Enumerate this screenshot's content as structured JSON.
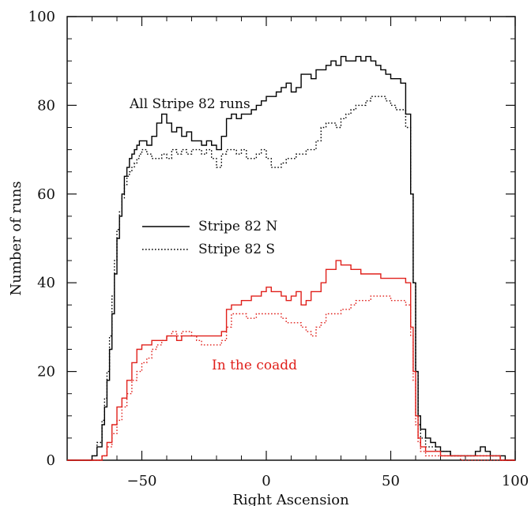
{
  "chart_data": {
    "type": "line",
    "title": "",
    "xlabel": "Right Ascension",
    "ylabel": "Number of runs",
    "xlim": [
      -80,
      100
    ],
    "ylim": [
      0,
      100
    ],
    "xticks": [
      -50,
      0,
      50,
      100
    ],
    "yticks": [
      0,
      20,
      40,
      60,
      80,
      100
    ],
    "xtick_labels": [
      "−50",
      "0",
      "50",
      "100"
    ],
    "ytick_labels": [
      "0",
      "20",
      "40",
      "60",
      "80",
      "100"
    ],
    "grid": false,
    "legend": {
      "placement": "center-left",
      "entries": [
        {
          "label": "Stripe 82 N",
          "style": "solid",
          "color": "#000000"
        },
        {
          "label": "Stripe 82 S",
          "style": "dotted",
          "color": "#000000"
        }
      ]
    },
    "annotations": [
      {
        "text": "All Stripe 82 runs",
        "color": "#000000",
        "x": -44,
        "y": 84
      },
      {
        "text": "In the coadd",
        "color": "#e0201b",
        "x": -25,
        "y": 20.5
      }
    ],
    "series": [
      {
        "group": "All Stripe 82 runs",
        "style": "solid",
        "color": "#000000",
        "x": [
          -80,
          -70,
          -68,
          -66,
          -65,
          -64,
          -63,
          -62,
          -61,
          -60,
          -59,
          -58,
          -57,
          -56,
          -55,
          -54,
          -53,
          -52,
          -51,
          -50,
          -48,
          -46,
          -44,
          -42,
          -40,
          -38,
          -36,
          -34,
          -32,
          -30,
          -28,
          -26,
          -24,
          -22,
          -20,
          -18,
          -16,
          -14,
          -12,
          -10,
          -8,
          -6,
          -4,
          -2,
          0,
          2,
          4,
          6,
          8,
          10,
          12,
          14,
          16,
          18,
          20,
          22,
          24,
          26,
          28,
          30,
          32,
          34,
          36,
          38,
          40,
          42,
          44,
          46,
          48,
          50,
          52,
          54,
          56,
          58,
          59,
          60,
          61,
          62,
          64,
          66,
          68,
          70,
          72,
          74,
          76,
          78,
          80,
          82,
          84,
          86,
          88,
          90,
          92,
          94,
          96,
          100
        ],
        "y": [
          0,
          1,
          3,
          8,
          12,
          18,
          25,
          33,
          42,
          50,
          55,
          60,
          64,
          66,
          68,
          69,
          70,
          71,
          72,
          72,
          71,
          73,
          76,
          78,
          76,
          74,
          75,
          73,
          74,
          72,
          72,
          71,
          72,
          71,
          70,
          73,
          77,
          78,
          77,
          78,
          78,
          79,
          80,
          81,
          82,
          82,
          83,
          84,
          85,
          83,
          84,
          87,
          87,
          86,
          88,
          88,
          89,
          90,
          89,
          91,
          90,
          90,
          91,
          90,
          91,
          90,
          89,
          88,
          87,
          86,
          86,
          85,
          78,
          60,
          40,
          20,
          10,
          7,
          5,
          4,
          3,
          2,
          2,
          1,
          1,
          1,
          1,
          1,
          2,
          3,
          2,
          1,
          1,
          1,
          0,
          0
        ]
      },
      {
        "group": "All Stripe 82 runs",
        "style": "dotted",
        "color": "#000000",
        "x": [
          -80,
          -70,
          -68,
          -66,
          -65,
          -64,
          -63,
          -62,
          -61,
          -60,
          -59,
          -58,
          -57,
          -56,
          -55,
          -54,
          -53,
          -52,
          -51,
          -50,
          -48,
          -46,
          -44,
          -42,
          -40,
          -38,
          -36,
          -34,
          -32,
          -30,
          -28,
          -26,
          -24,
          -22,
          -20,
          -18,
          -16,
          -14,
          -12,
          -10,
          -8,
          -6,
          -4,
          -2,
          0,
          2,
          4,
          6,
          8,
          10,
          12,
          14,
          16,
          18,
          20,
          22,
          24,
          26,
          28,
          30,
          32,
          34,
          36,
          38,
          40,
          42,
          44,
          46,
          48,
          50,
          52,
          54,
          56,
          58,
          59,
          60,
          61,
          62,
          64,
          66,
          68,
          70,
          72,
          74,
          76,
          78,
          80,
          82,
          84,
          86,
          88,
          90,
          92,
          94,
          96,
          100
        ],
        "y": [
          0,
          1,
          4,
          9,
          14,
          20,
          28,
          37,
          45,
          52,
          56,
          59,
          62,
          64,
          65,
          66,
          67,
          68,
          69,
          70,
          69,
          68,
          68,
          69,
          68,
          70,
          69,
          70,
          69,
          70,
          70,
          69,
          70,
          68,
          66,
          69,
          70,
          70,
          69,
          70,
          68,
          68,
          69,
          70,
          68,
          66,
          66,
          67,
          68,
          68,
          69,
          69,
          70,
          70,
          72,
          75,
          76,
          76,
          75,
          77,
          78,
          79,
          80,
          80,
          81,
          82,
          82,
          82,
          81,
          80,
          79,
          79,
          75,
          60,
          40,
          20,
          8,
          5,
          3,
          3,
          2,
          2,
          2,
          1,
          1,
          1,
          1,
          1,
          1,
          1,
          1,
          1,
          1,
          0,
          0,
          0
        ]
      },
      {
        "group": "In the coadd",
        "style": "solid",
        "color": "#e0201b",
        "x": [
          -80,
          -70,
          -66,
          -64,
          -62,
          -60,
          -58,
          -56,
          -54,
          -52,
          -50,
          -48,
          -46,
          -44,
          -42,
          -40,
          -38,
          -36,
          -34,
          -32,
          -30,
          -28,
          -26,
          -24,
          -22,
          -20,
          -18,
          -16,
          -14,
          -12,
          -10,
          -8,
          -6,
          -4,
          -2,
          0,
          2,
          4,
          6,
          8,
          10,
          12,
          14,
          16,
          18,
          20,
          22,
          24,
          26,
          28,
          30,
          32,
          34,
          36,
          38,
          40,
          42,
          44,
          46,
          48,
          50,
          52,
          54,
          56,
          58,
          59,
          60,
          61,
          62,
          64,
          66,
          70,
          74,
          78,
          82,
          86,
          90,
          94,
          100
        ],
        "y": [
          0,
          0,
          1,
          4,
          8,
          12,
          14,
          18,
          22,
          25,
          26,
          26,
          27,
          27,
          27,
          28,
          28,
          27,
          28,
          28,
          28,
          28,
          28,
          28,
          28,
          28,
          29,
          34,
          35,
          35,
          36,
          36,
          37,
          37,
          38,
          39,
          38,
          38,
          37,
          36,
          37,
          38,
          35,
          36,
          38,
          38,
          40,
          43,
          43,
          45,
          44,
          44,
          43,
          43,
          42,
          42,
          42,
          42,
          41,
          41,
          41,
          41,
          41,
          40,
          30,
          20,
          10,
          5,
          3,
          2,
          2,
          1,
          1,
          1,
          1,
          1,
          1,
          0,
          0
        ]
      },
      {
        "group": "In the coadd",
        "style": "dotted",
        "color": "#e0201b",
        "x": [
          -80,
          -70,
          -66,
          -64,
          -62,
          -60,
          -58,
          -56,
          -54,
          -52,
          -50,
          -48,
          -46,
          -44,
          -42,
          -40,
          -38,
          -36,
          -34,
          -32,
          -30,
          -28,
          -26,
          -24,
          -22,
          -20,
          -18,
          -16,
          -14,
          -12,
          -10,
          -8,
          -6,
          -4,
          -2,
          0,
          2,
          4,
          6,
          8,
          10,
          12,
          14,
          16,
          18,
          20,
          22,
          24,
          26,
          28,
          30,
          32,
          34,
          36,
          38,
          40,
          42,
          44,
          46,
          48,
          50,
          52,
          54,
          56,
          58,
          59,
          60,
          61,
          62,
          64,
          66,
          70,
          74,
          78,
          82,
          86,
          90,
          94,
          100
        ],
        "y": [
          0,
          0,
          1,
          3,
          6,
          9,
          12,
          15,
          18,
          20,
          22,
          23,
          25,
          26,
          27,
          28,
          29,
          28,
          29,
          29,
          28,
          27,
          26,
          26,
          26,
          26,
          27,
          30,
          33,
          33,
          33,
          32,
          32,
          33,
          33,
          33,
          33,
          33,
          32,
          31,
          31,
          31,
          30,
          29,
          28,
          30,
          31,
          33,
          33,
          33,
          34,
          34,
          35,
          36,
          36,
          36,
          37,
          37,
          37,
          37,
          36,
          36,
          36,
          35,
          28,
          18,
          8,
          4,
          2,
          1,
          1,
          1,
          1,
          0,
          0,
          0,
          0,
          0,
          0
        ]
      }
    ]
  }
}
